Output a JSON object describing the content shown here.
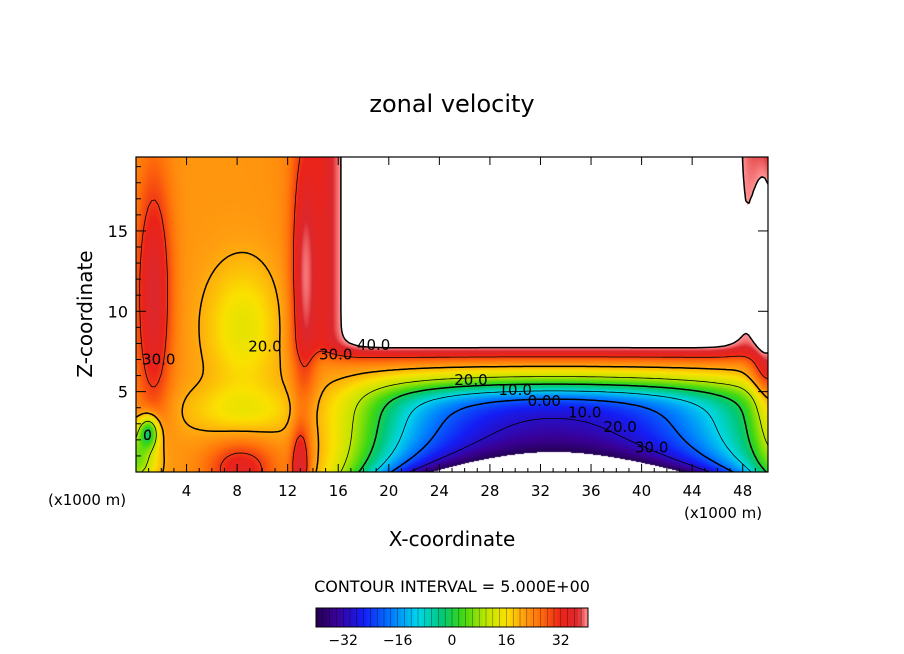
{
  "chart_data": {
    "type": "heatmap",
    "title": "zonal velocity",
    "xlabel": "X-coordinate",
    "ylabel": "Z-coordinate",
    "x_unit_left": "(x1000 m)",
    "x_unit_right": "(x1000 m)",
    "xlim": [
      0,
      50
    ],
    "ylim": [
      0,
      19.6
    ],
    "xticks": [
      4,
      8,
      12,
      16,
      20,
      24,
      28,
      32,
      36,
      40,
      44,
      48
    ],
    "yticks": [
      5,
      10,
      15
    ],
    "contour_interval_label": "CONTOUR INTERVAL = 5.000E+00",
    "contour_labels": [
      {
        "text": "30.0",
        "x": 1.8,
        "y": 6.7
      },
      {
        "text": "20.0",
        "x": 10.2,
        "y": 7.5
      },
      {
        "text": "30.0",
        "x": 15.8,
        "y": 7.0
      },
      {
        "text": "40.0",
        "x": 18.8,
        "y": 7.6
      },
      {
        "text": "20.0",
        "x": 26.5,
        "y": 5.4
      },
      {
        "text": "10.0",
        "x": 30.0,
        "y": 4.8
      },
      {
        "text": "0.00",
        "x": 32.3,
        "y": 4.1
      },
      {
        "text": "10.0",
        "x": 35.5,
        "y": 3.4
      },
      {
        "text": "20.0",
        "x": 38.3,
        "y": 2.5
      },
      {
        "text": "30.0",
        "x": 40.8,
        "y": 1.2
      }
    ],
    "colorbar": {
      "range": [
        -40,
        40
      ],
      "ticks": [
        -32,
        -16,
        0,
        16,
        32
      ],
      "tick_labels": [
        "−32",
        "−16",
        "0",
        "16",
        "32"
      ]
    },
    "colors": {
      "very_negative": "#3a0090",
      "negative": "#1040ff",
      "zero": "#00d060",
      "weak_positive": "#e8f000",
      "positive": "#ff9a10",
      "strong_positive": "#e82020",
      "saturated": "#ff8a8a",
      "off_scale": "#ffffff"
    }
  }
}
